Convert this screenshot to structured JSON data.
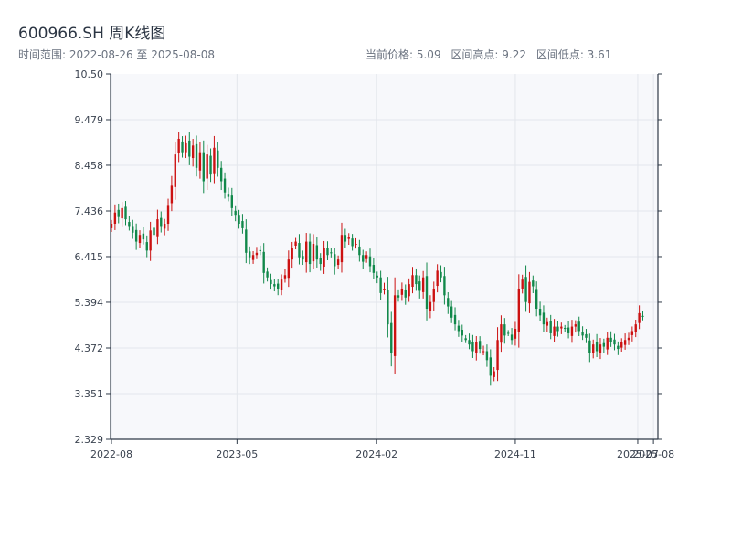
{
  "header": {
    "title": "600966.SH 周K线图",
    "range_label": "时间范围: 2022-08-26 至 2025-08-08",
    "current_price": "当前价格: 5.09",
    "interval_high": "区间高点: 9.22",
    "interval_low": "区间低点: 3.61"
  },
  "colors": {
    "up": "#cc1111",
    "down": "#11884a",
    "plot_bg": "#f7f8fb",
    "grid": "#e3e6ec",
    "axis": "#2e3947"
  },
  "chart_data": {
    "type": "candlestick",
    "title": "600966.SH 周K线图",
    "xlabel": "",
    "ylabel": "",
    "ylim": [
      2.329,
      10.5
    ],
    "xlim": [
      "2022-08-26",
      "2025-08-08"
    ],
    "y_ticks": [
      "2.329",
      "3.351",
      "4.372",
      "5.394",
      "6.415",
      "7.436",
      "8.458",
      "9.479",
      "10.50"
    ],
    "x_ticks": [
      "2022-08",
      "2023-05",
      "2024-02",
      "2024-11",
      "2025-07",
      "2025-08"
    ],
    "x_tick_dates": [
      "2022-08-26",
      "2023-05-01",
      "2024-02-01",
      "2024-11-01",
      "2025-07-01",
      "2025-08-01"
    ],
    "grid": true,
    "start_date": "2022-08-26",
    "closes": [
      7.15,
      7.4,
      7.3,
      7.5,
      7.25,
      7.1,
      6.95,
      6.75,
      6.9,
      6.8,
      6.55,
      7.0,
      6.9,
      7.25,
      7.1,
      7.15,
      7.55,
      8.0,
      8.7,
      9.05,
      8.75,
      8.95,
      8.65,
      8.9,
      8.4,
      8.75,
      8.1,
      8.7,
      8.25,
      8.85,
      8.4,
      8.1,
      7.85,
      7.75,
      7.5,
      7.35,
      7.15,
      7.05,
      6.5,
      6.4,
      6.45,
      6.5,
      6.55,
      6.05,
      5.95,
      5.8,
      5.75,
      5.7,
      5.9,
      6.0,
      6.35,
      6.6,
      6.75,
      6.4,
      6.35,
      6.75,
      6.25,
      6.7,
      6.35,
      6.25,
      6.6,
      6.45,
      6.5,
      6.2,
      6.35,
      6.9,
      6.75,
      6.85,
      6.65,
      6.7,
      6.45,
      6.3,
      6.45,
      6.2,
      6.05,
      5.95,
      5.6,
      5.7,
      4.9,
      4.25,
      5.55,
      5.5,
      5.7,
      5.5,
      5.8,
      6.0,
      5.8,
      5.65,
      5.95,
      5.25,
      5.4,
      5.7,
      6.1,
      5.95,
      5.55,
      5.3,
      5.05,
      4.9,
      4.75,
      4.65,
      4.55,
      4.45,
      4.3,
      4.5,
      4.35,
      4.3,
      4.1,
      3.75,
      3.85,
      4.55,
      4.9,
      4.65,
      4.7,
      4.55,
      4.8,
      5.7,
      5.9,
      5.4,
      5.85,
      5.75,
      5.25,
      5.1,
      4.9,
      4.95,
      4.7,
      4.85,
      4.75,
      4.85,
      4.8,
      4.7,
      4.85,
      4.9,
      4.75,
      4.65,
      4.6,
      4.25,
      4.45,
      4.3,
      4.45,
      4.4,
      4.6,
      4.5,
      4.45,
      4.35,
      4.5,
      4.55,
      4.6,
      4.75,
      4.9,
      5.15,
      5.09
    ],
    "current_price": 5.09,
    "interval_high": 9.22,
    "interval_low": 3.61
  }
}
